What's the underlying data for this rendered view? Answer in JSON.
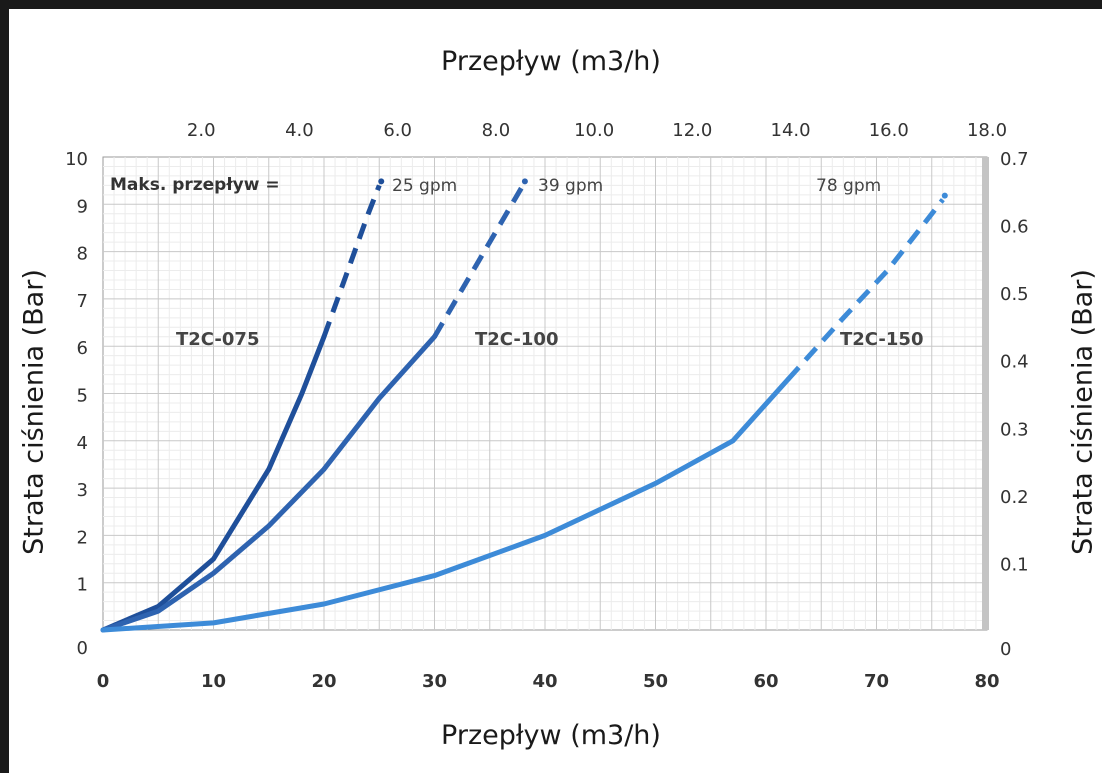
{
  "chart_data": {
    "type": "line",
    "title_top": "Przepływ (m3/h)",
    "xlabel": "Przepływ (m3/h)",
    "ylabel_left": "Strata ciśnienia (Bar)",
    "ylabel_right": "Strata ciśnienia (Bar)",
    "xlim": [
      0,
      80
    ],
    "x_ticks": [
      "0",
      "10",
      "20",
      "30",
      "40",
      "50",
      "60",
      "70",
      "80"
    ],
    "x2lim": [
      0,
      18
    ],
    "x2_ticks": [
      "2.0",
      "4.0",
      "6.0",
      "8.0",
      "10.0",
      "12.0",
      "14.0",
      "16.0",
      "18.0"
    ],
    "ylim_left": [
      0,
      10
    ],
    "y_left_ticks": [
      "0",
      "1",
      "2",
      "3",
      "4",
      "5",
      "6",
      "7",
      "8",
      "9",
      "10"
    ],
    "ylim_right": [
      0,
      0.7
    ],
    "y_right_ticks": [
      "0",
      "0.1",
      "0.2",
      "0.3",
      "0.4",
      "0.5",
      "0.6",
      "0.7"
    ],
    "grid": true,
    "max_flow_label": "Maks. przepływ  =",
    "series": [
      {
        "name": "T2C-075",
        "color": "#1f4f9a",
        "max_flow_label": "25 gpm",
        "solid": [
          [
            0,
            0
          ],
          [
            5,
            0.5
          ],
          [
            10,
            1.5
          ],
          [
            15,
            3.4
          ],
          [
            18,
            5.0
          ],
          [
            20,
            6.2
          ]
        ],
        "dashed": [
          [
            20,
            6.2
          ],
          [
            22,
            7.5
          ],
          [
            24,
            8.8
          ],
          [
            25,
            9.4
          ]
        ]
      },
      {
        "name": "T2C-100",
        "color": "#2e63b0",
        "max_flow_label": "39 gpm",
        "solid": [
          [
            0,
            0
          ],
          [
            5,
            0.4
          ],
          [
            10,
            1.2
          ],
          [
            15,
            2.2
          ],
          [
            20,
            3.4
          ],
          [
            25,
            4.9
          ],
          [
            30,
            6.2
          ]
        ],
        "dashed": [
          [
            30,
            6.2
          ],
          [
            33,
            7.4
          ],
          [
            36,
            8.6
          ],
          [
            38,
            9.4
          ]
        ]
      },
      {
        "name": "T2C-150",
        "color": "#3d8bd8",
        "max_flow_label": "78 gpm",
        "solid": [
          [
            0,
            0
          ],
          [
            10,
            0.15
          ],
          [
            20,
            0.55
          ],
          [
            30,
            1.15
          ],
          [
            40,
            2.0
          ],
          [
            50,
            3.1
          ],
          [
            57,
            4.0
          ],
          [
            62,
            5.3
          ]
        ],
        "dashed": [
          [
            62,
            5.3
          ],
          [
            67,
            6.6
          ],
          [
            71,
            7.6
          ],
          [
            75,
            8.8
          ],
          [
            76,
            9.1
          ]
        ]
      }
    ]
  }
}
